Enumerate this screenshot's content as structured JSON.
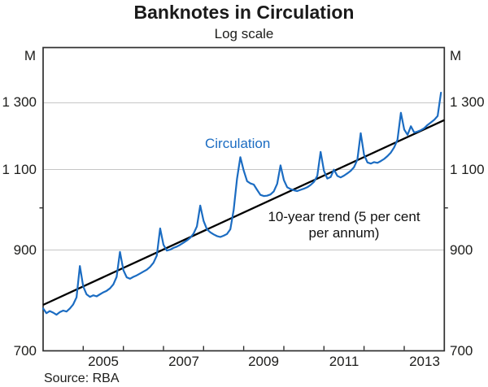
{
  "chart_data": {
    "type": "line",
    "title": "Banknotes in Circulation",
    "subtitle": "Log scale",
    "unit": "M",
    "source": "Source: RBA",
    "yscale": "log",
    "ylim": [
      700,
      1492
    ],
    "x_range": [
      2004,
      2014
    ],
    "frequency": "monthly",
    "x_start": "2004-01",
    "x_end": "2013-12",
    "yticks": [
      {
        "value": 700,
        "label": "700",
        "gridline": false
      },
      {
        "value": 900,
        "label": "900",
        "gridline": true
      },
      {
        "value": 1100,
        "label": "1 100",
        "gridline": true
      },
      {
        "value": 1300,
        "label": "1 300",
        "gridline": true
      }
    ],
    "minor_ytick_value": 1000,
    "xtick_years": [
      2005,
      2006,
      2007,
      2008,
      2009,
      2010,
      2011,
      2012,
      2013
    ],
    "xlabels": [
      {
        "label": "2005",
        "center_year": 2005.5
      },
      {
        "label": "2007",
        "center_year": 2007.5
      },
      {
        "label": "2009",
        "center_year": 2009.5
      },
      {
        "label": "2011",
        "center_year": 2011.5
      },
      {
        "label": "2013",
        "center_year": 2013.5
      }
    ],
    "series": [
      {
        "name": "Circulation",
        "color": "#1b6cc2",
        "start_year": 2004,
        "interval_months": 1,
        "values": [
          778,
          769,
          773,
          770,
          766,
          771,
          774,
          772,
          778,
          786,
          800,
          865,
          822,
          806,
          801,
          804,
          802,
          806,
          810,
          813,
          818,
          826,
          842,
          896,
          856,
          841,
          838,
          842,
          845,
          849,
          853,
          857,
          863,
          872,
          888,
          950,
          912,
          899,
          901,
          905,
          908,
          912,
          917,
          922,
          928,
          938,
          955,
          1006,
          968,
          948,
          941,
          936,
          932,
          930,
          933,
          937,
          948,
          995,
          1075,
          1135,
          1098,
          1069,
          1063,
          1060,
          1046,
          1033,
          1030,
          1031,
          1034,
          1042,
          1062,
          1112,
          1072,
          1053,
          1048,
          1045,
          1043,
          1046,
          1049,
          1053,
          1059,
          1067,
          1083,
          1150,
          1097,
          1076,
          1080,
          1100,
          1083,
          1079,
          1084,
          1090,
          1097,
          1107,
          1128,
          1205,
          1142,
          1120,
          1117,
          1121,
          1119,
          1124,
          1130,
          1138,
          1148,
          1163,
          1185,
          1268,
          1216,
          1200,
          1226,
          1207,
          1210,
          1214,
          1220,
          1230,
          1238,
          1246,
          1258,
          1333
        ]
      }
    ],
    "trend": {
      "label": "10-year trend (5 per cent per annum)",
      "label_line1": "10-year trend (5 per cent",
      "label_line2": "per annum)",
      "rate_percent": 5,
      "start_year": 2004,
      "end_year": 2014,
      "start_value": 785,
      "end_value": 1245,
      "color": "#000000"
    }
  }
}
